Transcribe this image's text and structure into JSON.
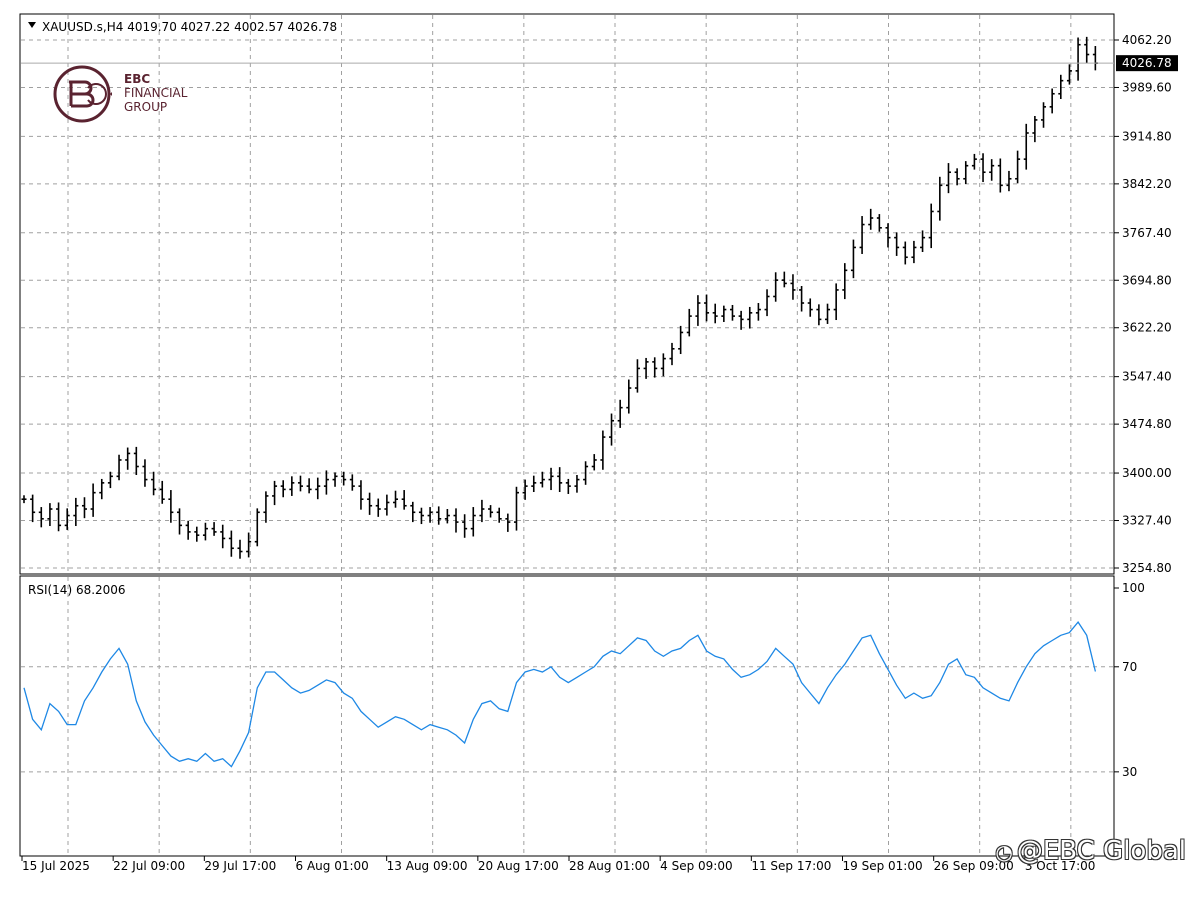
{
  "header": {
    "symbol_line": "XAUUSD.s,H4  4019.70 4027.22 4002.57 4026.78",
    "last_price": "4026.78"
  },
  "logo": {
    "line1": "EBC",
    "line2": "FINANCIAL",
    "line3": "GROUP"
  },
  "rsi": {
    "label": "RSI(14) 68.2006",
    "levels": [
      "100",
      "70",
      "30"
    ],
    "level_values": [
      100,
      70,
      30
    ],
    "color": "#1e88e5"
  },
  "watermark": {
    "text": "@EBC Global"
  },
  "colors": {
    "candle": "#000000",
    "grid": "#a0a0a0",
    "price_line": "#aaaaaa",
    "rsi_line": "#1e88e5"
  },
  "chart_data": [
    {
      "type": "line",
      "title": "XAUUSD.s,H4",
      "ylabel": "",
      "ylim": [
        3254.8,
        4062.2
      ],
      "y_ticks": [
        "4062.20",
        "3989.60",
        "3914.80",
        "3842.20",
        "3767.40",
        "3694.80",
        "3622.20",
        "3547.40",
        "3474.80",
        "3400.00",
        "3327.40",
        "3254.80"
      ],
      "y_tick_values": [
        4062.2,
        3989.6,
        3914.8,
        3842.2,
        3767.4,
        3694.8,
        3622.2,
        3547.4,
        3474.8,
        3400.0,
        3327.4,
        3254.8
      ],
      "x_ticks": [
        "15 Jul 2025",
        "22 Jul 09:00",
        "29 Jul 17:00",
        "6 Aug 01:00",
        "13 Aug 09:00",
        "20 Aug 17:00",
        "28 Aug 01:00",
        "4 Sep 09:00",
        "11 Sep 17:00",
        "19 Sep 01:00",
        "26 Sep 09:00",
        "3 Oct 17:00"
      ],
      "last": {
        "open": 4019.7,
        "high": 4027.22,
        "low": 4002.57,
        "close": 4026.78
      },
      "close_points": [
        3360,
        3340,
        3330,
        3345,
        3320,
        3335,
        3350,
        3345,
        3370,
        3385,
        3395,
        3420,
        3430,
        3410,
        3390,
        3375,
        3360,
        3340,
        3320,
        3310,
        3305,
        3315,
        3310,
        3300,
        3285,
        3280,
        3295,
        3340,
        3365,
        3380,
        3375,
        3385,
        3380,
        3375,
        3380,
        3390,
        3395,
        3390,
        3380,
        3360,
        3350,
        3345,
        3355,
        3360,
        3350,
        3340,
        3335,
        3340,
        3330,
        3335,
        3325,
        3315,
        3335,
        3345,
        3340,
        3330,
        3325,
        3370,
        3380,
        3385,
        3390,
        3395,
        3385,
        3380,
        3390,
        3410,
        3420,
        3455,
        3480,
        3500,
        3530,
        3560,
        3570,
        3560,
        3575,
        3590,
        3615,
        3640,
        3660,
        3645,
        3640,
        3650,
        3640,
        3635,
        3645,
        3650,
        3670,
        3695,
        3690,
        3680,
        3660,
        3650,
        3635,
        3650,
        3680,
        3710,
        3745,
        3780,
        3790,
        3775,
        3760,
        3745,
        3730,
        3745,
        3760,
        3800,
        3840,
        3860,
        3850,
        3870,
        3880,
        3860,
        3870,
        3840,
        3850,
        3880,
        3920,
        3940,
        3960,
        3980,
        4000,
        4015,
        4055,
        4040,
        4026.78
      ]
    },
    {
      "type": "line",
      "title": "RSI(14) 68.2006",
      "ylim": [
        0,
        100
      ],
      "y_ticks": [
        "100",
        "70",
        "30"
      ],
      "y_tick_values": [
        100,
        70,
        30
      ],
      "series": [
        {
          "name": "RSI(14)",
          "values": [
            62,
            50,
            46,
            56,
            53,
            48,
            48,
            57,
            62,
            68,
            73,
            77,
            71,
            57,
            49,
            44,
            40,
            36,
            34,
            35,
            34,
            37,
            34,
            35,
            32,
            38,
            45,
            62,
            68,
            68,
            65,
            62,
            60,
            61,
            63,
            65,
            64,
            60,
            58,
            53,
            50,
            47,
            49,
            51,
            50,
            48,
            46,
            48,
            47,
            46,
            44,
            41,
            50,
            56,
            57,
            54,
            53,
            64,
            68,
            69,
            68,
            70,
            66,
            64,
            66,
            68,
            70,
            74,
            76,
            75,
            78,
            81,
            80,
            76,
            74,
            76,
            77,
            80,
            82,
            76,
            74,
            73,
            69,
            66,
            67,
            69,
            72,
            77,
            74,
            71,
            64,
            60,
            56,
            62,
            67,
            71,
            76,
            81,
            82,
            75,
            69,
            63,
            58,
            60,
            58,
            59,
            64,
            71,
            73,
            67,
            66,
            62,
            60,
            58,
            57,
            64,
            70,
            75,
            78,
            80,
            82,
            83,
            87,
            82,
            68.2
          ]
        }
      ]
    }
  ]
}
